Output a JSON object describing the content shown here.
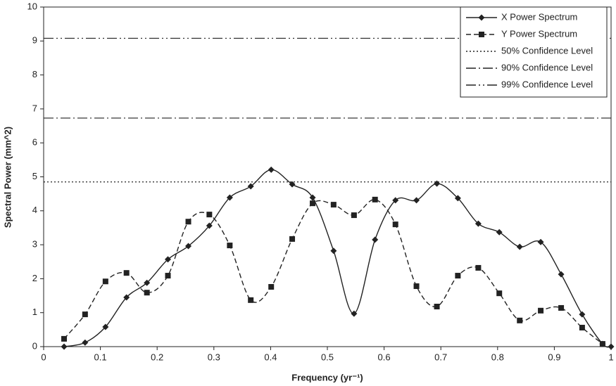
{
  "chart_data": {
    "type": "line",
    "xlabel": "Frequency (yr⁻¹)",
    "ylabel": "Spectral Power (mm^2)",
    "xlim": [
      0,
      1
    ],
    "ylim": [
      0,
      10
    ],
    "xticks": [
      0,
      0.1,
      0.2,
      0.3,
      0.4,
      0.5,
      0.6,
      0.7,
      0.8,
      0.9,
      1
    ],
    "yticks": [
      0,
      1,
      2,
      3,
      4,
      5,
      6,
      7,
      8,
      9,
      10
    ],
    "legend": "top-right",
    "series": [
      {
        "name": "X Power Spectrum",
        "color": "#222222",
        "marker": "diamond",
        "dash": "solid",
        "x": [
          0.036,
          0.073,
          0.109,
          0.146,
          0.182,
          0.219,
          0.255,
          0.292,
          0.328,
          0.365,
          0.401,
          0.438,
          0.474,
          0.511,
          0.547,
          0.584,
          0.62,
          0.657,
          0.693,
          0.73,
          0.766,
          0.803,
          0.839,
          0.876,
          0.912,
          0.949,
          0.985,
          1.0
        ],
        "values": [
          0,
          0.12,
          0.58,
          1.45,
          1.88,
          2.57,
          2.96,
          3.56,
          4.39,
          4.72,
          5.21,
          4.78,
          4.39,
          2.82,
          0.97,
          3.15,
          4.31,
          4.31,
          4.8,
          4.37,
          3.62,
          3.37,
          2.94,
          3.08,
          2.13,
          0.95,
          0.08,
          0
        ]
      },
      {
        "name": "Y Power Spectrum",
        "color": "#222222",
        "marker": "square",
        "dash": "dashed",
        "x": [
          0.036,
          0.073,
          0.109,
          0.146,
          0.182,
          0.219,
          0.255,
          0.292,
          0.328,
          0.365,
          0.401,
          0.438,
          0.474,
          0.511,
          0.547,
          0.584,
          0.62,
          0.657,
          0.693,
          0.73,
          0.766,
          0.803,
          0.839,
          0.876,
          0.912,
          0.949,
          0.985
        ],
        "values": [
          0.23,
          0.95,
          1.92,
          2.17,
          1.59,
          2.09,
          3.68,
          3.89,
          2.98,
          1.37,
          1.76,
          3.17,
          4.22,
          4.18,
          3.87,
          4.33,
          3.6,
          1.78,
          1.18,
          2.09,
          2.32,
          1.57,
          0.77,
          1.06,
          1.14,
          0.56,
          0.08
        ]
      }
    ],
    "hlines": [
      {
        "name": "50% Confidence Level",
        "value": 4.85,
        "dash": "dotted"
      },
      {
        "name": "90% Confidence Level",
        "value": 6.73,
        "dash": "dashdot"
      },
      {
        "name": "99% Confidence Level",
        "value": 9.08,
        "dash": "dashdotdot"
      }
    ]
  }
}
